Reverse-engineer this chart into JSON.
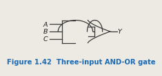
{
  "bg_color": "#ede9e3",
  "gate_color": "#3a3a3a",
  "line_color": "#3a3a3a",
  "label_color": "#1a1a1a",
  "fig_label_color": "#1a6ab5",
  "inputs": [
    "A",
    "B",
    "C"
  ],
  "output_label": "Y",
  "figure_caption": "Figure 1.42  Three-input AND-OR gate",
  "caption_fontsize": 7.2,
  "label_fontsize": 6.8
}
